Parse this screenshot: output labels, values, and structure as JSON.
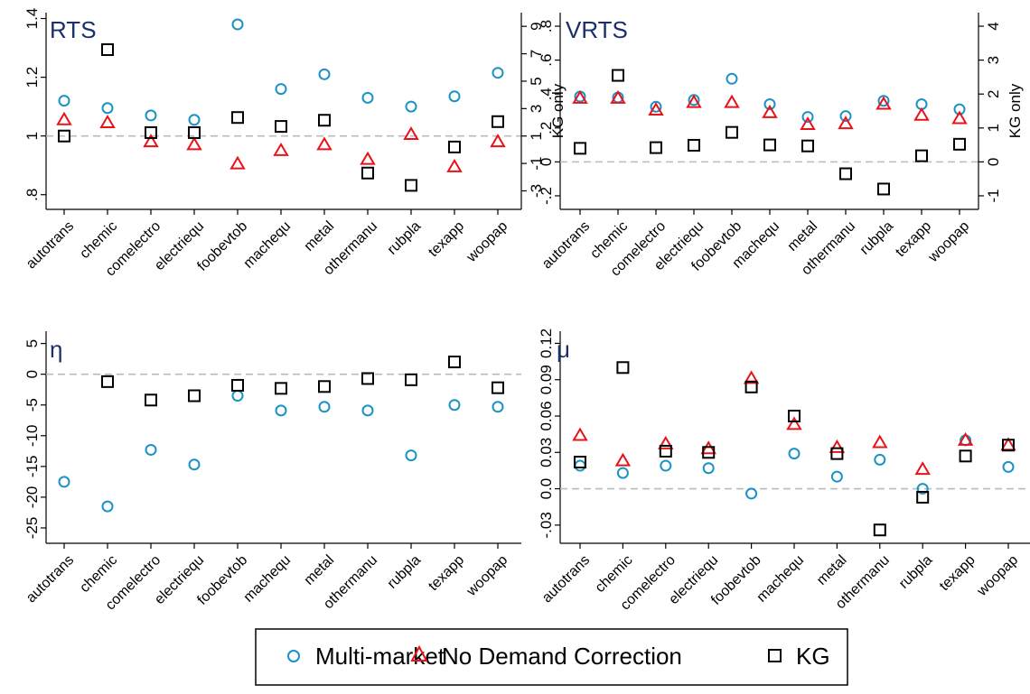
{
  "legend": {
    "items": [
      {
        "label": "Multi-market",
        "marker": "circle",
        "color": "#1a93c4"
      },
      {
        "label": "No Demand Correction",
        "marker": "triangle",
        "color": "#e8121a"
      },
      {
        "label": "KG",
        "marker": "square",
        "color": "#000000"
      }
    ]
  },
  "chart_data": [
    {
      "type": "scatter",
      "title": "RTS",
      "categories": [
        "autotrans",
        "chemic",
        "comelectro",
        "electriequ",
        "foobevtob",
        "machequ",
        "metal",
        "othermanu",
        "rubpla",
        "texapp",
        "woopap"
      ],
      "ylim": [
        0.75,
        1.42
      ],
      "yticks": [
        ".8",
        "1",
        "1.2",
        "1.4"
      ],
      "ytick_values": [
        0.8,
        1.0,
        1.2,
        1.4
      ],
      "reference_line": 1,
      "right_axis": {
        "label": "KG only",
        "ylim": [
          -4.35,
          10.0
        ],
        "ticks": [
          "-3",
          "-1",
          "1",
          "3",
          "5",
          "7",
          "9"
        ],
        "tick_values": [
          -3,
          -1,
          1,
          3,
          5,
          7,
          9
        ]
      },
      "series": [
        {
          "name": "Multi-market",
          "axis": "left",
          "values": [
            1.12,
            1.095,
            1.07,
            1.055,
            1.38,
            1.16,
            1.21,
            1.13,
            1.1,
            1.135,
            1.215
          ]
        },
        {
          "name": "No Demand Correction",
          "axis": "left",
          "values": [
            1.055,
            1.045,
            0.98,
            0.97,
            0.905,
            0.95,
            0.97,
            0.92,
            1.005,
            0.895,
            0.98
          ]
        },
        {
          "name": "KG",
          "axis": "right",
          "values": [
            1.0,
            7.3,
            1.25,
            1.25,
            2.35,
            1.7,
            2.15,
            -1.7,
            -2.6,
            0.2,
            2.05
          ]
        }
      ]
    },
    {
      "type": "scatter",
      "title": "VRTS",
      "categories": [
        "autotrans",
        "chemic",
        "comelectro",
        "electriequ",
        "foobevtob",
        "machequ",
        "metal",
        "othermanu",
        "rubpla",
        "texapp",
        "woopap"
      ],
      "ylim": [
        -0.28,
        0.88
      ],
      "yticks": [
        "-.2",
        "0",
        ".2",
        ".4",
        ".6",
        ".8"
      ],
      "ytick_values": [
        -0.2,
        0,
        0.2,
        0.4,
        0.6,
        0.8
      ],
      "reference_line": 0,
      "right_axis": {
        "label": "KG only",
        "ylim": [
          -1.4,
          4.4
        ],
        "ticks": [
          "-1",
          "0",
          "1",
          "2",
          "3",
          "4"
        ],
        "tick_values": [
          -1,
          0,
          1,
          2,
          3,
          4
        ]
      },
      "series": [
        {
          "name": "Multi-market",
          "axis": "left",
          "values": [
            0.385,
            0.38,
            0.325,
            0.365,
            0.49,
            0.34,
            0.265,
            0.27,
            0.36,
            0.34,
            0.31
          ]
        },
        {
          "name": "No Demand Correction",
          "axis": "left",
          "values": [
            0.375,
            0.375,
            0.305,
            0.35,
            0.35,
            0.29,
            0.22,
            0.225,
            0.34,
            0.275,
            0.255
          ]
        },
        {
          "name": "KG",
          "axis": "right",
          "values": [
            0.4,
            2.55,
            0.42,
            0.49,
            0.87,
            0.5,
            0.47,
            -0.35,
            -0.8,
            0.18,
            0.52
          ]
        }
      ]
    },
    {
      "type": "scatter",
      "title": "η",
      "categories": [
        "autotrans",
        "chemic",
        "comelectro",
        "electriequ",
        "foobevtob",
        "machequ",
        "metal",
        "othermanu",
        "rubpla",
        "texapp",
        "woopap"
      ],
      "ylim": [
        -27.5,
        7
      ],
      "yticks": [
        "-25",
        "-20",
        "-15",
        "-10",
        "-5",
        "0",
        "5"
      ],
      "ytick_values": [
        -25,
        -20,
        -15,
        -10,
        -5,
        0,
        5
      ],
      "reference_line": 0,
      "series": [
        {
          "name": "Multi-market",
          "values": [
            -17.5,
            -21.5,
            -12.3,
            -14.7,
            -3.5,
            -5.9,
            -5.3,
            -5.9,
            -13.2,
            -5.0,
            -5.3
          ]
        },
        {
          "name": "KG",
          "values": [
            null,
            -1.2,
            -4.2,
            -3.5,
            -1.8,
            -2.3,
            -2.0,
            -0.7,
            -0.9,
            2.0,
            -2.2
          ]
        }
      ]
    },
    {
      "type": "scatter",
      "title": "μ",
      "categories": [
        "autotrans",
        "chemic",
        "comelectro",
        "electriequ",
        "foobevtob",
        "machequ",
        "metal",
        "othermanu",
        "rubpla",
        "texapp",
        "woopap"
      ],
      "ylim": [
        -0.045,
        0.13
      ],
      "yticks": [
        "-.03",
        "0.0",
        "0.03",
        "0.06",
        "0.09",
        "0.12"
      ],
      "ytick_values": [
        -0.03,
        0,
        0.03,
        0.06,
        0.09,
        0.12
      ],
      "reference_line": 0,
      "series": [
        {
          "name": "Multi-market",
          "values": [
            0.019,
            0.013,
            0.019,
            0.017,
            -0.004,
            0.029,
            0.01,
            0.024,
            0.0,
            0.04,
            0.018
          ]
        },
        {
          "name": "No Demand Correction",
          "values": [
            0.044,
            0.023,
            0.037,
            0.033,
            0.091,
            0.053,
            0.034,
            0.038,
            0.016,
            0.04,
            0.036
          ]
        },
        {
          "name": "KG",
          "values": [
            0.022,
            0.1,
            0.031,
            0.03,
            0.084,
            0.06,
            0.029,
            -0.034,
            -0.007,
            0.027,
            0.036
          ]
        }
      ]
    }
  ]
}
